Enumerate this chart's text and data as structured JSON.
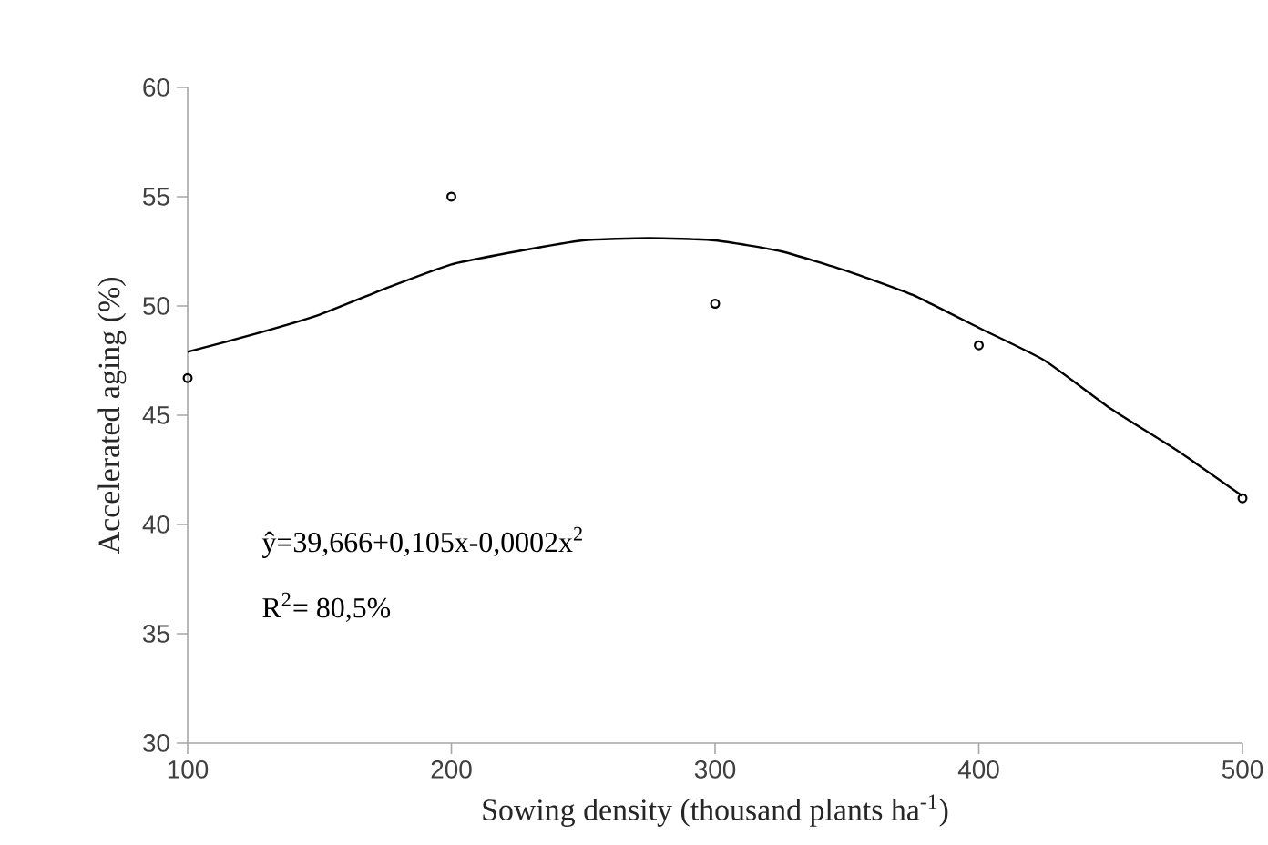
{
  "chart_data": {
    "type": "scatter",
    "xlabel": "Sowing density (thousand plants ha$^{-1}$)",
    "ylabel": "Accelerated aging  (%)",
    "x": [
      100,
      200,
      300,
      400,
      500
    ],
    "series": [
      {
        "color": "#000000",
        "marker": "circle",
        "values": [
          46.7,
          55,
          50.1,
          48.2,
          41.2
        ]
      },
      {
        "type": "line",
        "color": "#000000",
        "x": [
          100,
          125,
          150,
          175,
          200,
          225,
          250,
          275,
          300,
          325,
          350,
          375,
          400,
          425,
          450,
          475,
          500
        ],
        "values": [
          47.9,
          48.7,
          49.6,
          50.8,
          51.9,
          52.5,
          53.0,
          53.1,
          53.0,
          52.5,
          51.6,
          50.5,
          49.0,
          47.5,
          45.3,
          43.4,
          41.3
        ]
      }
    ],
    "xlim": [
      100,
      500
    ],
    "ylim": [
      30,
      60
    ],
    "xticks": [
      100,
      200,
      300,
      400,
      500
    ],
    "yticks": [
      30,
      35,
      40,
      45,
      50,
      55,
      60
    ],
    "grid": false,
    "annotations": [
      "ŷ=39,666+0,105x-0,0002x$^{2}$",
      "R$^{2}$= 80,5%"
    ]
  }
}
